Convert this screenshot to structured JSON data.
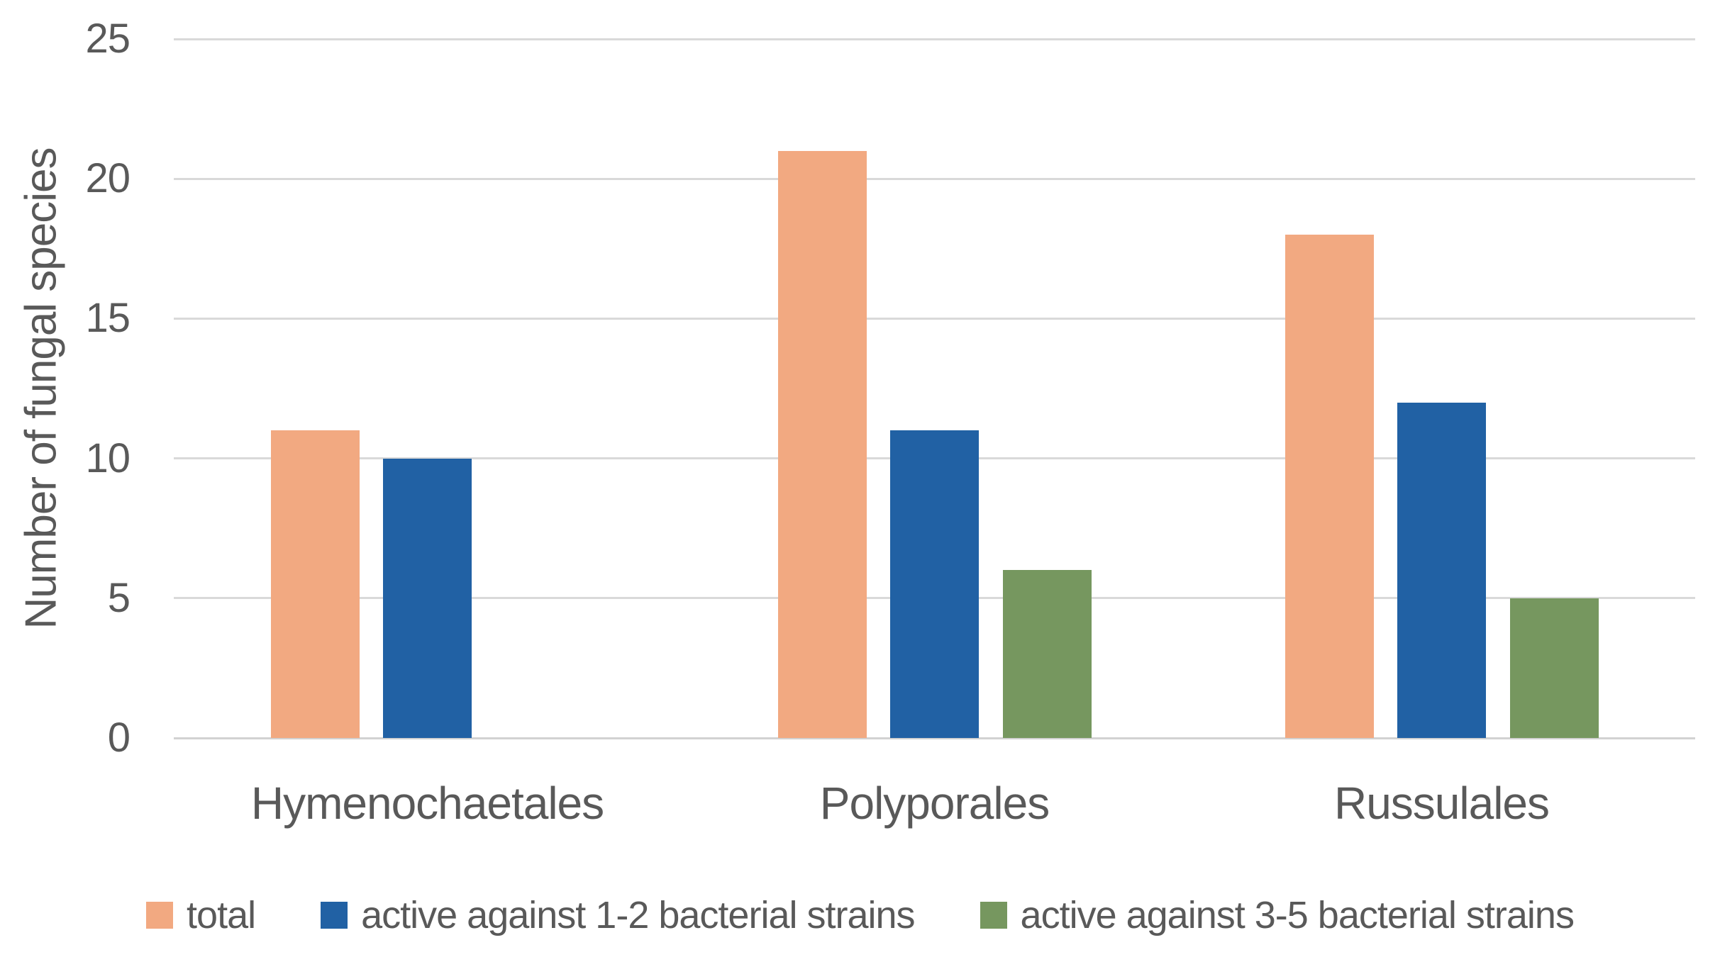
{
  "chart_data": {
    "type": "bar",
    "title": "",
    "ylabel": "Number of fungal species",
    "xlabel": "",
    "ylim": [
      0,
      25
    ],
    "ytick_step": 5,
    "yticks": [
      "0",
      "5",
      "10",
      "15",
      "20",
      "25"
    ],
    "grid": true,
    "legend_position": "bottom",
    "categories": [
      "Hymenochaetales",
      "Polyporales",
      "Russulales"
    ],
    "series": [
      {
        "name": "total",
        "color": "#F2A981",
        "values": [
          11,
          21,
          18
        ]
      },
      {
        "name": "active against 1-2 bacterial strains",
        "color": "#2161A4",
        "values": [
          10,
          11,
          12
        ]
      },
      {
        "name": "active against 3-5 bacterial strains",
        "color": "#76975F",
        "values": [
          0,
          6,
          5
        ]
      }
    ]
  },
  "colors": {
    "gridline": "#D9D9D9",
    "text": "#595959",
    "background": "#FFFFFF"
  }
}
